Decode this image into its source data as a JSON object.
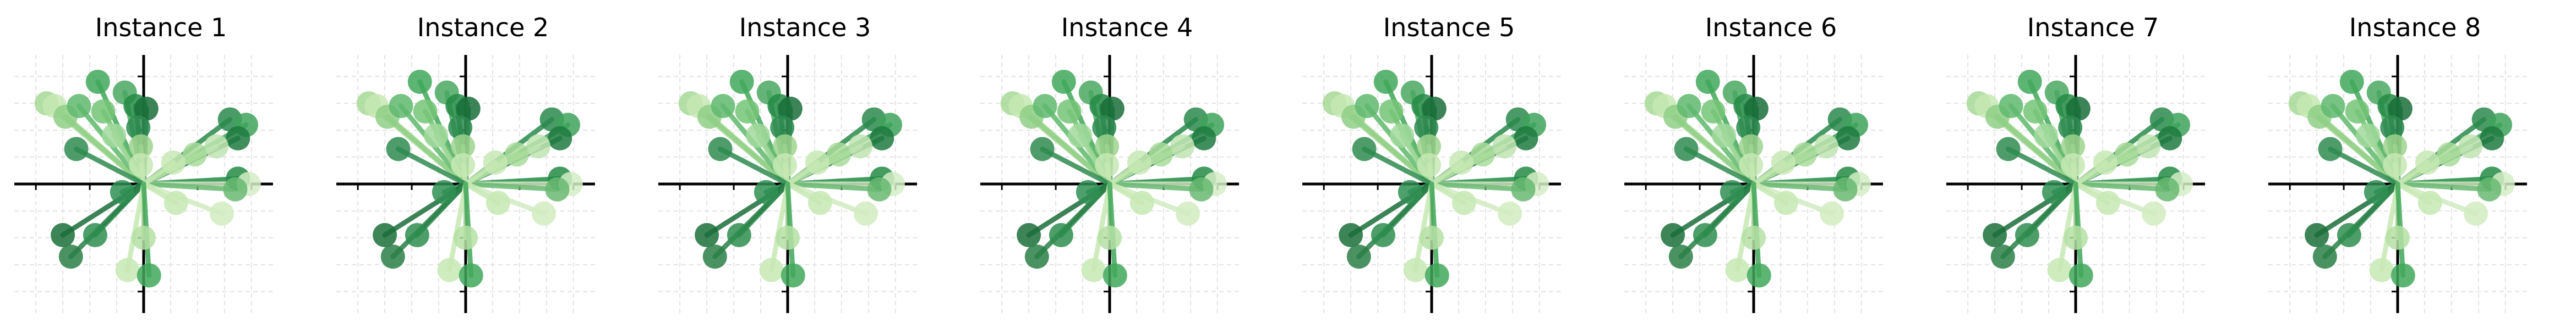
{
  "figure": {
    "instance_titles": [
      "Instance 1",
      "Instance 2",
      "Instance 3",
      "Instance 4",
      "Instance 5",
      "Instance 6",
      "Instance 7",
      "Instance 8"
    ]
  },
  "chart_data": {
    "type": "scatter",
    "description_style": "vector-diagram: each point drawn as a marker joined to the origin by a line; same vectors repeated in 8 small-multiple panels",
    "xlim": [
      -2.4,
      2.4
    ],
    "ylim": [
      -2.4,
      2.4
    ],
    "grid": true,
    "grid_style": "dashed light gray",
    "axes_through_origin": true,
    "colormap": "Greens",
    "panels": [
      "Instance 1",
      "Instance 2",
      "Instance 3",
      "Instance 4",
      "Instance 5",
      "Instance 6",
      "Instance 7",
      "Instance 8"
    ],
    "points": [
      {
        "x": -1.8,
        "y": 1.5,
        "color": "#a6d996"
      },
      {
        "x": -1.65,
        "y": 1.45,
        "color": "#c7e9b4"
      },
      {
        "x": -1.45,
        "y": 1.25,
        "color": "#8fcf86"
      },
      {
        "x": -1.2,
        "y": 1.45,
        "color": "#5fb96d"
      },
      {
        "x": -0.85,
        "y": 1.9,
        "color": "#41a85a"
      },
      {
        "x": -0.75,
        "y": 1.35,
        "color": "#74c476"
      },
      {
        "x": -0.35,
        "y": 1.7,
        "color": "#4aa760"
      },
      {
        "x": -0.15,
        "y": 1.45,
        "color": "#238b45"
      },
      {
        "x": 0.05,
        "y": 1.4,
        "color": "#1a6e3a"
      },
      {
        "x": -0.1,
        "y": 1.05,
        "color": "#2d8a4f"
      },
      {
        "x": -0.55,
        "y": 0.9,
        "color": "#a1d99b"
      },
      {
        "x": -0.05,
        "y": 0.7,
        "color": "#9dd38e"
      },
      {
        "x": -0.05,
        "y": 0.35,
        "color": "#c7e9b4"
      },
      {
        "x": -1.25,
        "y": 0.65,
        "color": "#2e8b50"
      },
      {
        "x": 1.6,
        "y": 1.2,
        "color": "#2a8a4c"
      },
      {
        "x": 1.9,
        "y": 1.1,
        "color": "#3ea35a"
      },
      {
        "x": 1.75,
        "y": 0.85,
        "color": "#1e7a40"
      },
      {
        "x": 1.35,
        "y": 0.7,
        "color": "#bfe4b1"
      },
      {
        "x": 1.75,
        "y": 0.1,
        "color": "#238b45"
      },
      {
        "x": 1.95,
        "y": 0.0,
        "color": "#d4edc5"
      },
      {
        "x": 1.7,
        "y": -0.1,
        "color": "#68b872"
      },
      {
        "x": 0.95,
        "y": 0.55,
        "color": "#a9dc9b"
      },
      {
        "x": 0.55,
        "y": 0.4,
        "color": "#c7e9b4"
      },
      {
        "x": 1.45,
        "y": -0.55,
        "color": "#d2ecc1"
      },
      {
        "x": 0.6,
        "y": -0.35,
        "color": "#c7e9b4"
      },
      {
        "x": -0.4,
        "y": -0.15,
        "color": "#2f8f52"
      },
      {
        "x": -1.5,
        "y": -0.95,
        "color": "#1b6e3a"
      },
      {
        "x": -0.9,
        "y": -0.95,
        "color": "#2e8d4f"
      },
      {
        "x": -1.35,
        "y": -1.35,
        "color": "#2a7f47"
      },
      {
        "x": 0.0,
        "y": -1.0,
        "color": "#b5e0a4"
      },
      {
        "x": -0.3,
        "y": -1.6,
        "color": "#c7e9b4"
      },
      {
        "x": 0.1,
        "y": -1.7,
        "color": "#41a85a"
      }
    ]
  }
}
